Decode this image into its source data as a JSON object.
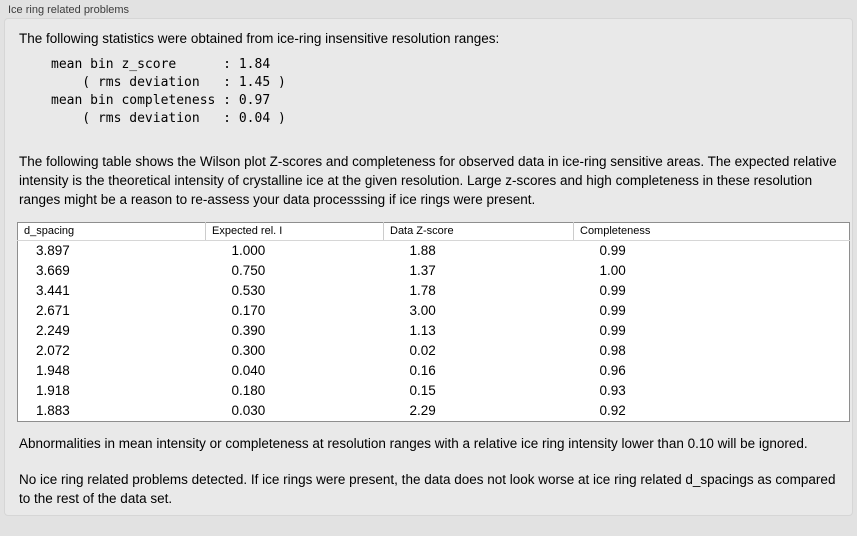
{
  "panel": {
    "title": "Ice ring related problems"
  },
  "intro": {
    "text": "The following statistics were obtained from ice-ring insensitive resolution ranges:"
  },
  "stats_block": {
    "text": "mean bin z_score      : 1.84\n    ( rms deviation   : 1.45 )\nmean bin completeness : 0.97\n    ( rms deviation   : 0.04 )"
  },
  "description": {
    "text": "The following table shows the Wilson plot Z-scores and completeness for observed data in ice-ring sensitive areas. The expected relative intensity is the theoretical intensity of crystalline ice at the given resolution. Large z-scores and high completeness in these resolution ranges might be a reason to re-assess your data processsing if ice rings were present."
  },
  "table": {
    "columns": [
      "d_spacing",
      "Expected rel. I",
      "Data Z-score",
      "Completeness"
    ],
    "rows": [
      [
        "3.897",
        "1.000",
        "1.88",
        "0.99"
      ],
      [
        "3.669",
        "0.750",
        "1.37",
        "1.00"
      ],
      [
        "3.441",
        "0.530",
        "1.78",
        "0.99"
      ],
      [
        "2.671",
        "0.170",
        "3.00",
        "0.99"
      ],
      [
        "2.249",
        "0.390",
        "1.13",
        "0.99"
      ],
      [
        "2.072",
        "0.300",
        "0.02",
        "0.98"
      ],
      [
        "1.948",
        "0.040",
        "0.16",
        "0.96"
      ],
      [
        "1.918",
        "0.180",
        "0.15",
        "0.93"
      ],
      [
        "1.883",
        "0.030",
        "2.29",
        "0.92"
      ]
    ]
  },
  "notes": {
    "ignore_note": "Abnormalities in mean intensity or completeness at resolution ranges with a relative ice ring intensity lower than 0.10 will be ignored.",
    "conclusion": "No ice ring related problems detected. If ice rings were present, the data does not look worse at ice ring related d_spacings as compared to the rest of the data set."
  },
  "colors": {
    "background": "#e9e9e9",
    "table_background": "#ffffff",
    "text": "#000000"
  }
}
